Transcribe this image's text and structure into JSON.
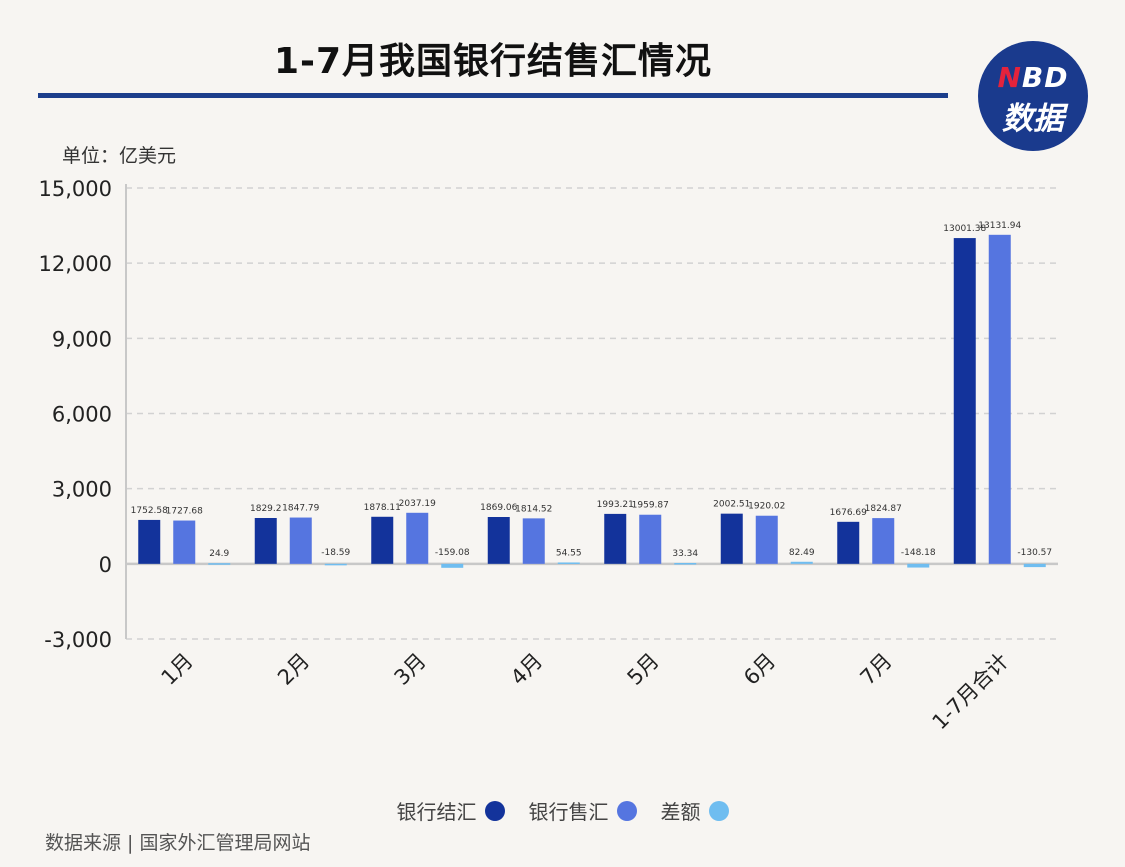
{
  "header": {
    "title": "1-7月我国银行结售汇情况",
    "unit": "单位：亿美元",
    "logo_top": "NBD",
    "logo_top_accent": "N",
    "logo_top_rest": "BD",
    "logo_bottom": "数据"
  },
  "footer": {
    "source": "数据来源 | 国家外汇管理局网站"
  },
  "colors": {
    "series1": "#13339b",
    "series2": "#5575e0",
    "series3": "#6fbdf0",
    "axis": "#c8c8c8",
    "grid": "#d2d2d2"
  },
  "chart_data": {
    "type": "bar",
    "categories": [
      "1月",
      "2月",
      "3月",
      "4月",
      "5月",
      "6月",
      "7月",
      "1-7月合计"
    ],
    "series": [
      {
        "name": "银行结汇",
        "values": [
          1752.58,
          1829.2,
          1878.11,
          1869.06,
          1993.21,
          2002.51,
          1676.69,
          13001.38
        ]
      },
      {
        "name": "银行售汇",
        "values": [
          1727.68,
          1847.79,
          2037.19,
          1814.52,
          1959.87,
          1920.02,
          1824.87,
          13131.94
        ]
      },
      {
        "name": "差额",
        "values": [
          24.9,
          -18.59,
          -159.08,
          54.55,
          33.34,
          82.49,
          -148.18,
          -130.57
        ]
      }
    ],
    "ylim": [
      -3000,
      15000
    ],
    "yticks": [
      -3000,
      0,
      3000,
      6000,
      9000,
      12000,
      15000
    ],
    "ytick_labels": [
      "-3,000",
      "0",
      "3,000",
      "6,000",
      "9,000",
      "12,000",
      "15,000"
    ],
    "ylabel": "单位：亿美元",
    "grid": true,
    "legend_position": "bottom-center"
  }
}
